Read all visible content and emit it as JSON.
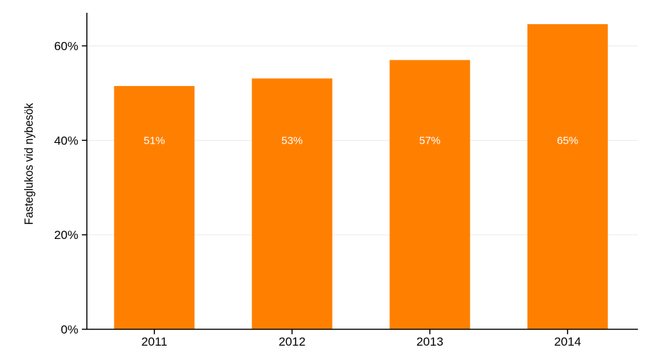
{
  "chart_data": {
    "type": "bar",
    "categories": [
      "2011",
      "2012",
      "2013",
      "2014"
    ],
    "values": [
      51.5,
      53.1,
      57.0,
      64.6
    ],
    "data_labels": [
      "51%",
      "53%",
      "57%",
      "65%"
    ],
    "ylabel": "Fasteglukos vid nybesök",
    "xlabel": "",
    "ylim": [
      0,
      67
    ],
    "yticks": [
      0,
      20,
      40,
      60
    ],
    "ytick_labels": [
      "0%",
      "20%",
      "40%",
      "60%"
    ],
    "grid": true,
    "colors": {
      "bar": "#ff8000",
      "grid": "#eaeaea",
      "axis": "#000000",
      "label": "#ffffff"
    }
  }
}
